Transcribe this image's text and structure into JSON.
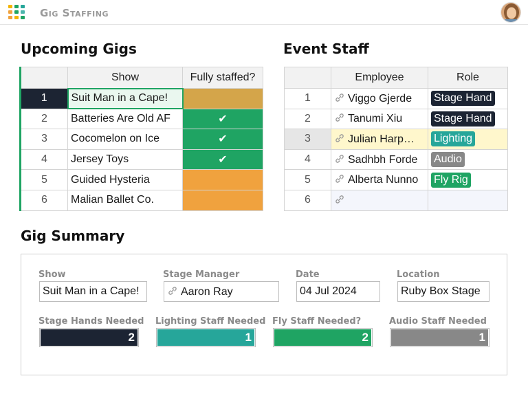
{
  "app": {
    "title": "Gig Staffing",
    "logo_icon": "grid-logo-icon",
    "avatar_icon": "user-avatar-icon"
  },
  "upcoming": {
    "title": "Upcoming Gigs",
    "headers": {
      "show": "Show",
      "staffed": "Fully staffed?"
    },
    "rows": [
      {
        "num": "1",
        "show": "Suit Man in a Cape!",
        "staffed": ""
      },
      {
        "num": "2",
        "show": "Batteries Are Old AF",
        "staffed": "✔"
      },
      {
        "num": "3",
        "show": "Cocomelon on Ice",
        "staffed": "✔"
      },
      {
        "num": "4",
        "show": "Jersey Toys",
        "staffed": "✔"
      },
      {
        "num": "5",
        "show": "Guided Hysteria",
        "staffed": ""
      },
      {
        "num": "6",
        "show": "Malian Ballet Co.",
        "staffed": ""
      }
    ]
  },
  "event_staff": {
    "title": "Event Staff",
    "headers": {
      "employee": "Employee",
      "role": "Role"
    },
    "rows": [
      {
        "num": "1",
        "employee": "Viggo Gjerde",
        "role": "Stage Hand"
      },
      {
        "num": "2",
        "employee": "Tanumi Xiu",
        "role": "Stage Hand"
      },
      {
        "num": "3",
        "employee": "Julian Harp…",
        "role": "Lighting"
      },
      {
        "num": "4",
        "employee": "Sadhbh Forde",
        "role": "Audio"
      },
      {
        "num": "5",
        "employee": "Alberta Nunno",
        "role": "Fly Rig"
      },
      {
        "num": "6",
        "employee": "",
        "role": ""
      }
    ]
  },
  "summary": {
    "title": "Gig Summary",
    "show_label": "Show",
    "show_value": "Suit Man in a Cape!",
    "manager_label": "Stage Manager",
    "manager_value": "Aaron Ray",
    "date_label": "Date",
    "date_value": "04 Jul 2024",
    "location_label": "Location",
    "location_value": "Ruby Box Stage",
    "stage_hands_label": "Stage Hands Needed",
    "stage_hands_value": "2",
    "lighting_label": "Lighting Staff Needed",
    "lighting_value": "1",
    "fly_label": "Fly Staff Needed?",
    "fly_value": "2",
    "audio_label": "Audio Staff Needed",
    "audio_value": "1"
  },
  "colors": {
    "accent_green": "#1fa463",
    "orange": "#f0a23e",
    "navy": "#1c2433",
    "teal": "#26a69a",
    "grey": "#888888"
  }
}
